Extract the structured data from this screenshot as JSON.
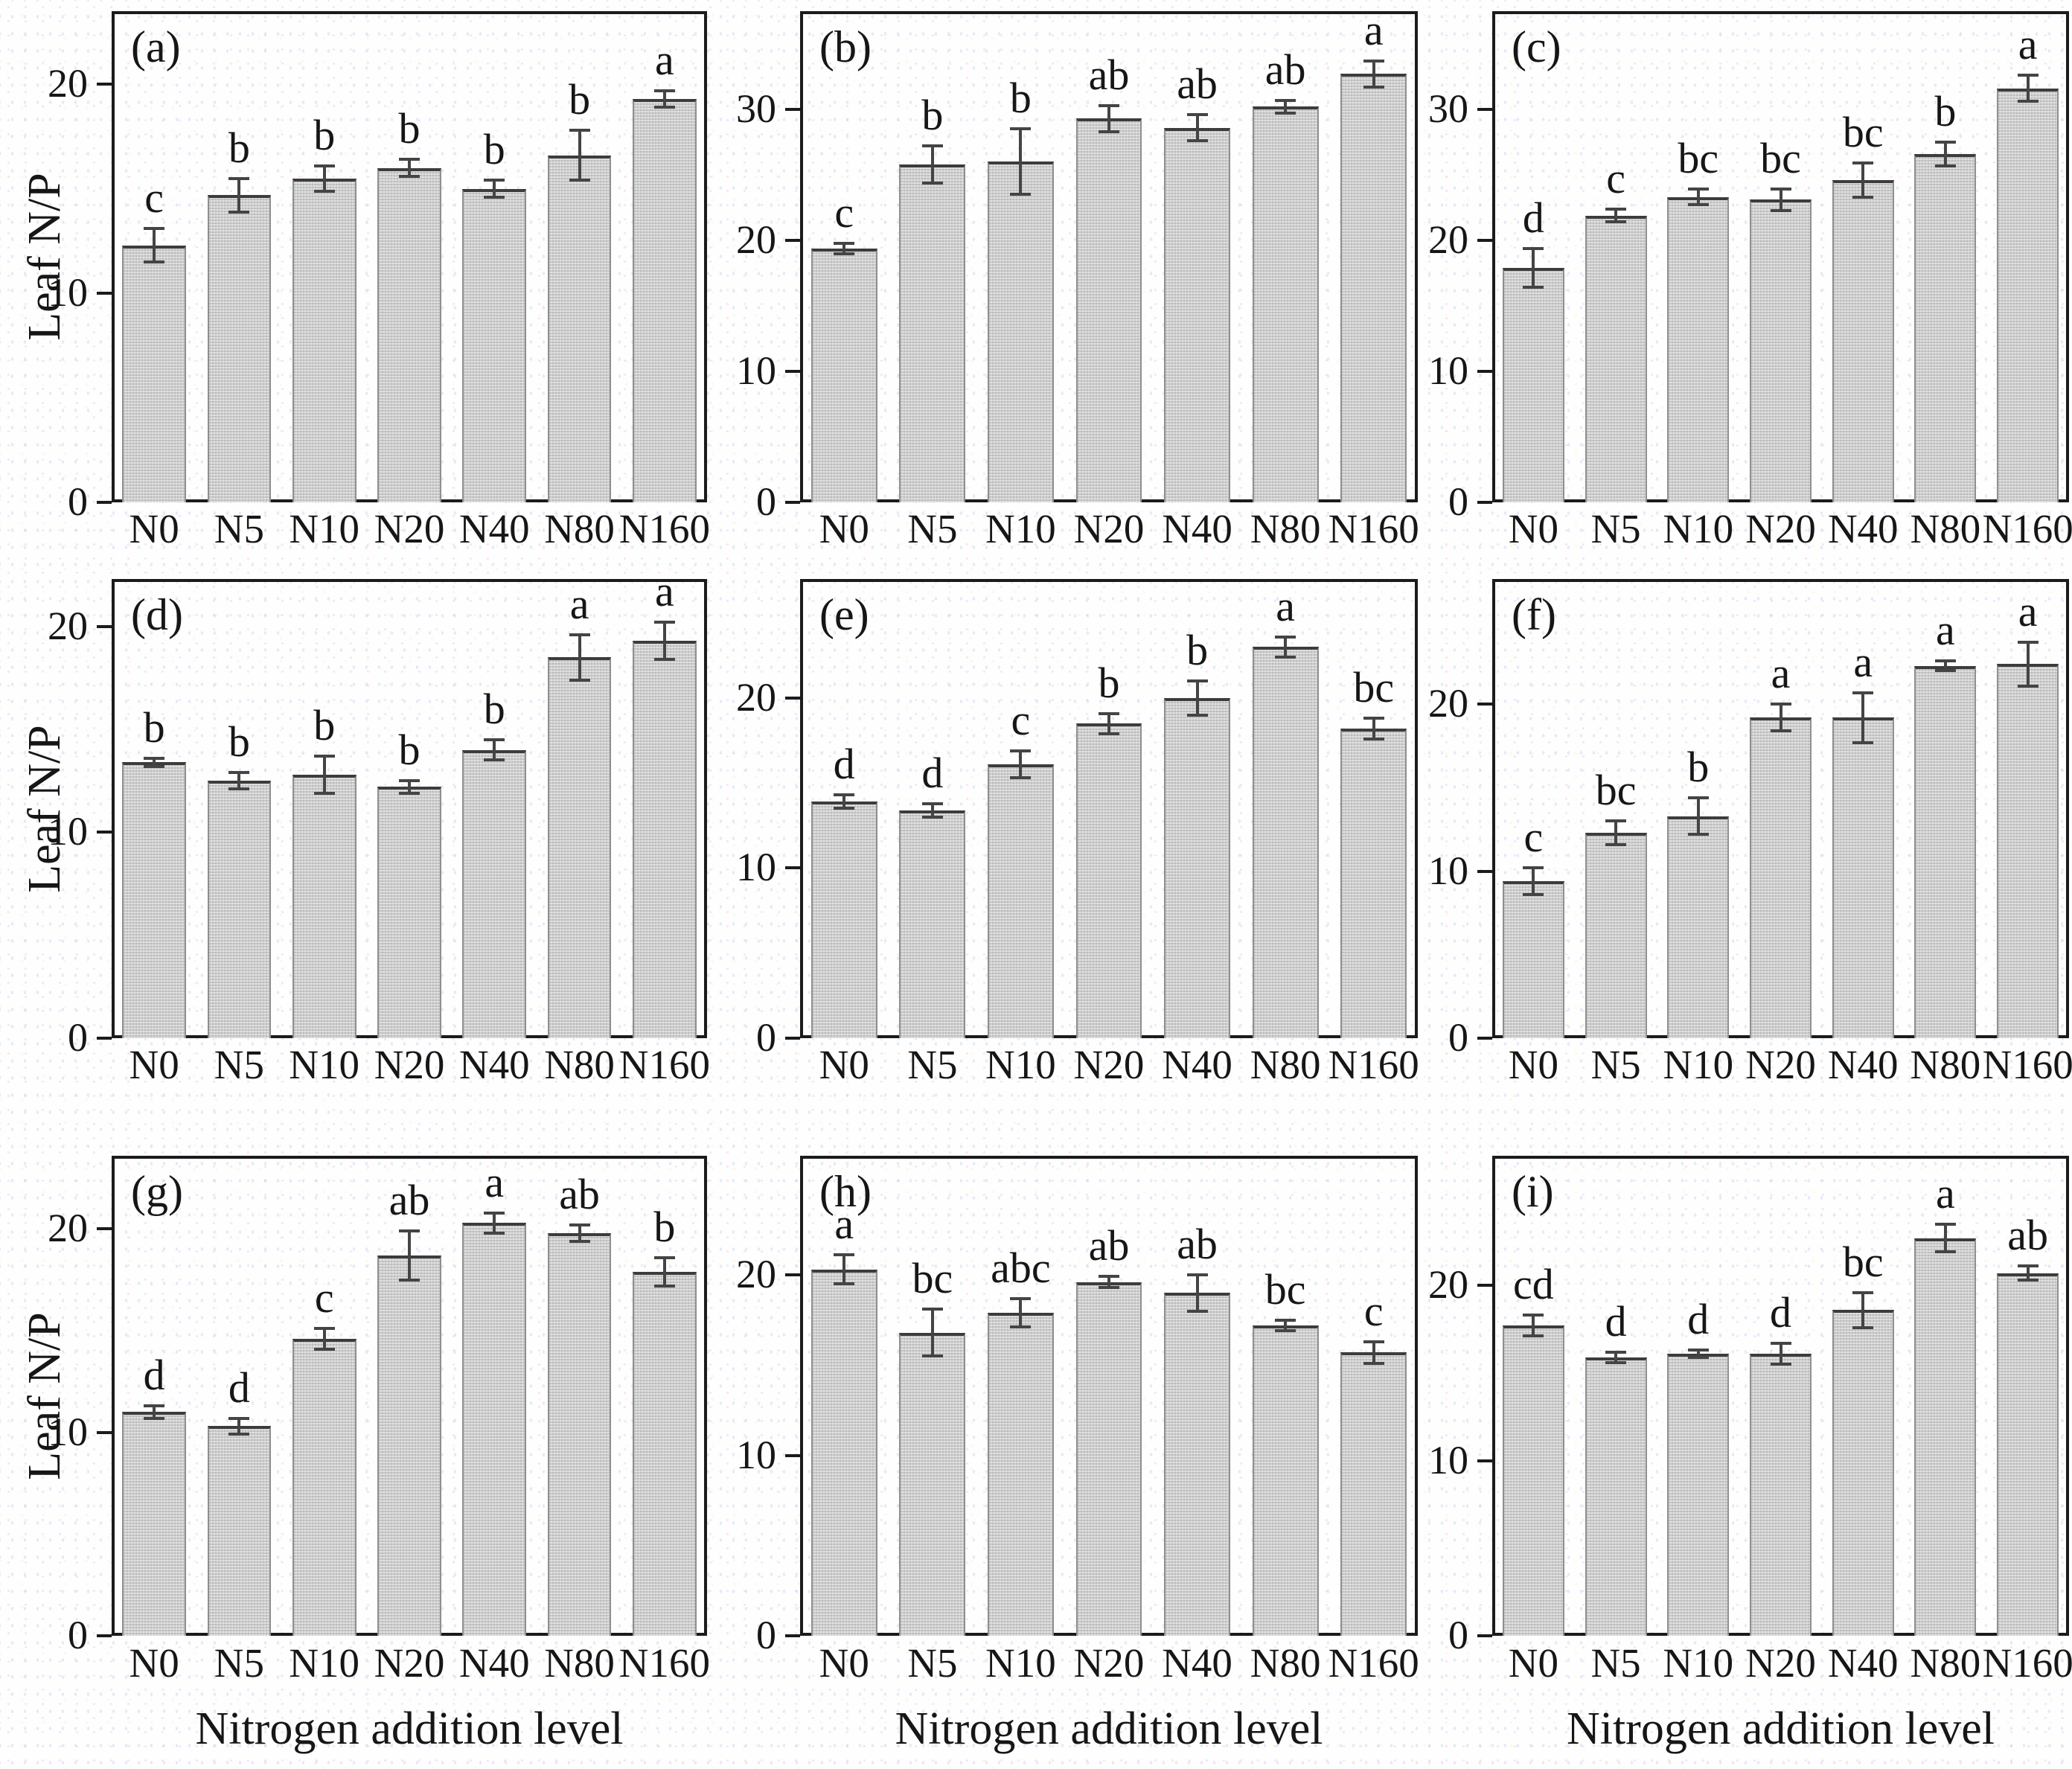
{
  "figure": {
    "y_axis_title": "Leaf N/P",
    "x_axis_title": "Nitrogen addition level",
    "bar_fill_color": "#cccccc",
    "bar_edge_color": "#8f8f8f",
    "bar_top_line_color": "#3c3c3c",
    "error_bar_color": "#444444",
    "axis_color": "#1b1b1b",
    "categories": [
      "N0",
      "N5",
      "N10",
      "N20",
      "N40",
      "N80",
      "N160"
    ]
  },
  "chart_data": [
    {
      "type": "bar",
      "panel_label": "(a)",
      "ylabel": "Leaf N/P",
      "xlabel": "",
      "categories": [
        "N0",
        "N5",
        "N10",
        "N20",
        "N40",
        "N80",
        "N160"
      ],
      "values": [
        12.3,
        14.7,
        15.5,
        16.0,
        15.0,
        16.6,
        19.3
      ],
      "errors": [
        0.8,
        0.8,
        0.6,
        0.4,
        0.4,
        1.2,
        0.4
      ],
      "sig_letters": [
        "c",
        "b",
        "b",
        "b",
        "b",
        "b",
        "a"
      ],
      "yticks": [
        0,
        10,
        20
      ],
      "ylim": [
        0,
        23.5
      ],
      "grid": false,
      "legend": "none"
    },
    {
      "type": "bar",
      "panel_label": "(b)",
      "ylabel": "",
      "xlabel": "",
      "categories": [
        "N0",
        "N5",
        "N10",
        "N20",
        "N40",
        "N80",
        "N160"
      ],
      "values": [
        19.4,
        25.8,
        26.0,
        29.3,
        28.6,
        30.2,
        32.7
      ],
      "errors": [
        0.4,
        1.4,
        2.5,
        1.0,
        1.0,
        0.5,
        1.0
      ],
      "sig_letters": [
        "c",
        "b",
        "b",
        "ab",
        "ab",
        "ab",
        "a"
      ],
      "yticks": [
        0,
        10,
        20,
        30
      ],
      "ylim": [
        0,
        37.5
      ],
      "grid": false,
      "legend": "none"
    },
    {
      "type": "bar",
      "panel_label": "(c)",
      "ylabel": "",
      "xlabel": "",
      "categories": [
        "N0",
        "N5",
        "N10",
        "N20",
        "N40",
        "N80",
        "N160"
      ],
      "values": [
        17.9,
        21.9,
        23.3,
        23.1,
        24.6,
        26.6,
        31.6
      ],
      "errors": [
        1.5,
        0.5,
        0.6,
        0.8,
        1.3,
        0.9,
        1.0
      ],
      "sig_letters": [
        "d",
        "c",
        "bc",
        "bc",
        "bc",
        "b",
        "a"
      ],
      "yticks": [
        0,
        10,
        20,
        30
      ],
      "ylim": [
        0,
        37.5
      ],
      "grid": false,
      "legend": "none"
    },
    {
      "type": "bar",
      "panel_label": "(d)",
      "ylabel": "Leaf N/P",
      "xlabel": "",
      "categories": [
        "N0",
        "N5",
        "N10",
        "N20",
        "N40",
        "N80",
        "N160"
      ],
      "values": [
        13.4,
        12.5,
        12.8,
        12.2,
        14.0,
        18.5,
        19.3
      ],
      "errors": [
        0.2,
        0.4,
        0.9,
        0.3,
        0.5,
        1.1,
        0.9
      ],
      "sig_letters": [
        "b",
        "b",
        "b",
        "b",
        "b",
        "a",
        "a"
      ],
      "yticks": [
        0,
        10,
        20
      ],
      "ylim": [
        0,
        22.3
      ],
      "grid": false,
      "legend": "none"
    },
    {
      "type": "bar",
      "panel_label": "(e)",
      "ylabel": "",
      "xlabel": "",
      "categories": [
        "N0",
        "N5",
        "N10",
        "N20",
        "N40",
        "N80",
        "N160"
      ],
      "values": [
        13.9,
        13.4,
        16.1,
        18.5,
        20.0,
        23.0,
        18.2
      ],
      "errors": [
        0.4,
        0.4,
        0.8,
        0.6,
        1.0,
        0.6,
        0.6
      ],
      "sig_letters": [
        "d",
        "d",
        "c",
        "b",
        "b",
        "a",
        "bc"
      ],
      "yticks": [
        0,
        10,
        20
      ],
      "ylim": [
        0,
        27.0
      ],
      "grid": false,
      "legend": "none"
    },
    {
      "type": "bar",
      "panel_label": "(f)",
      "ylabel": "",
      "xlabel": "",
      "categories": [
        "N0",
        "N5",
        "N10",
        "N20",
        "N40",
        "N80",
        "N160"
      ],
      "values": [
        9.4,
        12.3,
        13.3,
        19.2,
        19.2,
        22.3,
        22.4
      ],
      "errors": [
        0.8,
        0.7,
        1.1,
        0.8,
        1.5,
        0.3,
        1.3
      ],
      "sig_letters": [
        "c",
        "bc",
        "b",
        "a",
        "a",
        "a",
        "a"
      ],
      "yticks": [
        0,
        10,
        20
      ],
      "ylim": [
        0,
        27.5
      ],
      "grid": false,
      "legend": "none"
    },
    {
      "type": "bar",
      "panel_label": "(g)",
      "ylabel": "Leaf N/P",
      "xlabel": "Nitrogen addition level",
      "categories": [
        "N0",
        "N5",
        "N10",
        "N20",
        "N40",
        "N80",
        "N160"
      ],
      "values": [
        11.0,
        10.3,
        14.6,
        18.7,
        20.3,
        19.8,
        17.9
      ],
      "errors": [
        0.3,
        0.4,
        0.5,
        1.2,
        0.5,
        0.4,
        0.7
      ],
      "sig_letters": [
        "d",
        "d",
        "c",
        "ab",
        "a",
        "ab",
        "b"
      ],
      "yticks": [
        0,
        10,
        20
      ],
      "ylim": [
        0,
        23.6
      ],
      "grid": false,
      "legend": "none"
    },
    {
      "type": "bar",
      "panel_label": "(h)",
      "ylabel": "",
      "xlabel": "Nitrogen addition level",
      "categories": [
        "N0",
        "N5",
        "N10",
        "N20",
        "N40",
        "N80",
        "N160"
      ],
      "values": [
        20.3,
        16.8,
        17.9,
        19.6,
        19.0,
        17.2,
        15.7
      ],
      "errors": [
        0.8,
        1.3,
        0.8,
        0.3,
        1.0,
        0.3,
        0.6
      ],
      "sig_letters": [
        "a",
        "bc",
        "abc",
        "ab",
        "ab",
        "bc",
        "c"
      ],
      "yticks": [
        0,
        10,
        20
      ],
      "ylim": [
        0,
        26.6
      ],
      "grid": false,
      "legend": "none"
    },
    {
      "type": "bar",
      "panel_label": "(i)",
      "ylabel": "",
      "xlabel": "Nitrogen addition level",
      "categories": [
        "N0",
        "N5",
        "N10",
        "N20",
        "N40",
        "N80",
        "N160"
      ],
      "values": [
        17.7,
        15.9,
        16.1,
        16.1,
        18.6,
        22.7,
        20.7
      ],
      "errors": [
        0.6,
        0.3,
        0.2,
        0.6,
        1.0,
        0.8,
        0.4
      ],
      "sig_letters": [
        "cd",
        "d",
        "d",
        "d",
        "bc",
        "a",
        "ab"
      ],
      "yticks": [
        0,
        10,
        20
      ],
      "ylim": [
        0,
        27.4
      ],
      "grid": false,
      "legend": "none"
    }
  ]
}
